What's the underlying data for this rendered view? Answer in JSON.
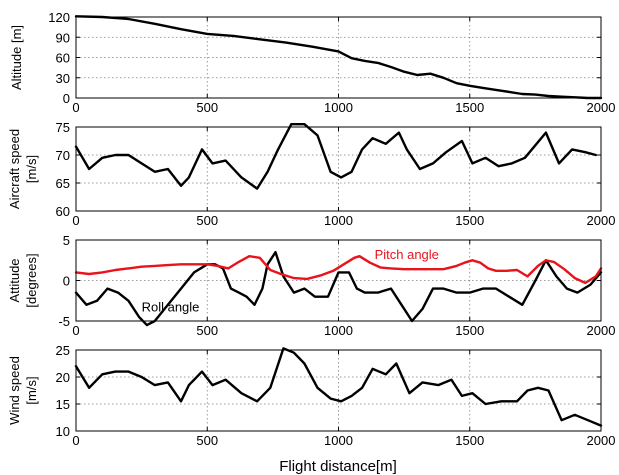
{
  "x_axis": {
    "label": "Flight distance[m]",
    "range": [
      0,
      2000
    ],
    "ticks": [
      0,
      500,
      1000,
      1500,
      2000
    ]
  },
  "colors": {
    "primary_line": "#000000",
    "pitch_line": "#e8131b",
    "pitch_label": "#e8131b",
    "grid": "#7f7f7f"
  },
  "chart_data": [
    {
      "type": "line",
      "ylabel": "Altitude [m]",
      "ylim": [
        0,
        120
      ],
      "yticks": [
        0,
        30,
        60,
        90,
        120
      ],
      "grid": true,
      "series": [
        {
          "color": "#000000",
          "x": [
            0,
            100,
            200,
            300,
            400,
            500,
            600,
            700,
            800,
            900,
            1000,
            1050,
            1100,
            1150,
            1200,
            1250,
            1300,
            1350,
            1400,
            1450,
            1500,
            1550,
            1600,
            1650,
            1700,
            1750,
            1800,
            1850,
            1900,
            1950,
            2000
          ],
          "y": [
            121,
            120,
            117,
            110,
            102,
            95,
            92,
            87,
            82,
            76,
            69,
            59,
            55,
            52,
            46,
            39,
            34,
            36,
            30,
            22,
            18,
            15,
            12,
            9,
            6,
            5,
            3,
            2,
            1,
            0,
            0
          ]
        }
      ]
    },
    {
      "type": "line",
      "ylabel": "Aircraft speed [m/s]",
      "ylim": [
        60,
        75
      ],
      "yticks": [
        60,
        65,
        70,
        75
      ],
      "grid": true,
      "series": [
        {
          "color": "#000000",
          "x": [
            0,
            50,
            100,
            150,
            200,
            250,
            300,
            350,
            400,
            430,
            480,
            520,
            570,
            630,
            690,
            730,
            770,
            820,
            870,
            920,
            970,
            1010,
            1050,
            1090,
            1130,
            1180,
            1230,
            1260,
            1310,
            1360,
            1410,
            1470,
            1510,
            1560,
            1610,
            1660,
            1710,
            1790,
            1840,
            1890,
            1940,
            1980
          ],
          "y": [
            71.5,
            67.5,
            69.5,
            70,
            70,
            68.5,
            67,
            67.5,
            64.5,
            66,
            71,
            68.5,
            69,
            66,
            64,
            67,
            71,
            75.5,
            75.5,
            73.5,
            67,
            66,
            67,
            71,
            73,
            72,
            74,
            71,
            67.5,
            68.5,
            70.5,
            72.5,
            68.5,
            69.5,
            68,
            68.5,
            69.5,
            74,
            68.5,
            71,
            70.5,
            70
          ]
        }
      ]
    },
    {
      "type": "line",
      "ylabel": "Attitude [degrees]",
      "ylim": [
        -5,
        5
      ],
      "yticks": [
        -5,
        0,
        5
      ],
      "grid": true,
      "annotations": [
        {
          "text": "Pitch angle",
          "color": "#e8131b",
          "x": 1260,
          "y": 3.3
        },
        {
          "text": "Roll angle",
          "color": "#000000",
          "x": 360,
          "y": -3.2
        }
      ],
      "series": [
        {
          "name": "Roll angle",
          "color": "#000000",
          "x": [
            0,
            40,
            80,
            120,
            160,
            200,
            240,
            270,
            300,
            350,
            400,
            450,
            500,
            530,
            560,
            590,
            620,
            650,
            680,
            710,
            730,
            760,
            790,
            830,
            870,
            910,
            960,
            1000,
            1040,
            1070,
            1100,
            1150,
            1200,
            1240,
            1280,
            1320,
            1360,
            1400,
            1450,
            1500,
            1550,
            1600,
            1650,
            1700,
            1750,
            1790,
            1830,
            1870,
            1910,
            1960,
            2000
          ],
          "y": [
            -1.5,
            -3,
            -2.5,
            -1,
            -1.5,
            -2.5,
            -4.5,
            -5.5,
            -5,
            -3,
            -1,
            1,
            2,
            2,
            1.5,
            -1,
            -1.5,
            -2,
            -3,
            -1,
            2,
            3.5,
            0.5,
            -1.5,
            -1,
            -2,
            -2,
            1,
            1,
            -1,
            -1.5,
            -1.5,
            -1,
            -3,
            -5,
            -3.5,
            -1,
            -1,
            -1.5,
            -1.5,
            -1,
            -1,
            -2,
            -3,
            0,
            2.5,
            0.5,
            -1,
            -1.5,
            -0.5,
            1
          ]
        },
        {
          "name": "Pitch angle",
          "color": "#e8131b",
          "x": [
            0,
            50,
            100,
            150,
            200,
            250,
            300,
            350,
            400,
            450,
            500,
            540,
            580,
            620,
            660,
            700,
            740,
            780,
            830,
            880,
            930,
            980,
            1020,
            1060,
            1080,
            1120,
            1160,
            1200,
            1250,
            1300,
            1350,
            1400,
            1450,
            1480,
            1510,
            1540,
            1570,
            1600,
            1640,
            1680,
            1720,
            1760,
            1790,
            1820,
            1860,
            1900,
            1940,
            1980,
            2000
          ],
          "y": [
            1,
            0.8,
            1,
            1.3,
            1.5,
            1.7,
            1.8,
            1.9,
            2,
            2,
            2,
            1.8,
            1.5,
            2.3,
            3,
            2.8,
            1.3,
            0.8,
            0.3,
            0.2,
            0.6,
            1.2,
            2,
            2.8,
            3,
            2.2,
            1.6,
            1.5,
            1.4,
            1.4,
            1.4,
            1.4,
            1.8,
            2.2,
            2.5,
            2.2,
            1.5,
            1.2,
            1.2,
            1.3,
            0.5,
            1.8,
            2.5,
            2.3,
            1.4,
            0.3,
            -0.3,
            0.5,
            1.5
          ]
        }
      ]
    },
    {
      "type": "line",
      "ylabel": "Wind speed [m/s]",
      "ylim": [
        10,
        25
      ],
      "yticks": [
        10,
        15,
        20,
        25
      ],
      "grid": true,
      "series": [
        {
          "color": "#000000",
          "x": [
            0,
            50,
            100,
            150,
            200,
            250,
            300,
            350,
            400,
            430,
            480,
            520,
            570,
            630,
            690,
            740,
            790,
            830,
            870,
            920,
            970,
            1010,
            1050,
            1090,
            1130,
            1180,
            1220,
            1270,
            1320,
            1380,
            1430,
            1470,
            1510,
            1560,
            1620,
            1680,
            1720,
            1760,
            1800,
            1850,
            1900,
            1950,
            2000
          ],
          "y": [
            22,
            18,
            20.5,
            21,
            21,
            20,
            18.5,
            19,
            15.5,
            18.5,
            21,
            18.5,
            19.5,
            17,
            15.5,
            18,
            25.3,
            24.5,
            22.5,
            18,
            16,
            15.5,
            16.5,
            18,
            21.5,
            20.5,
            22.5,
            17,
            19,
            18.5,
            19.5,
            16.5,
            17,
            15,
            15.5,
            15.5,
            17.5,
            18,
            17.5,
            12,
            13,
            12,
            11
          ]
        }
      ]
    }
  ]
}
